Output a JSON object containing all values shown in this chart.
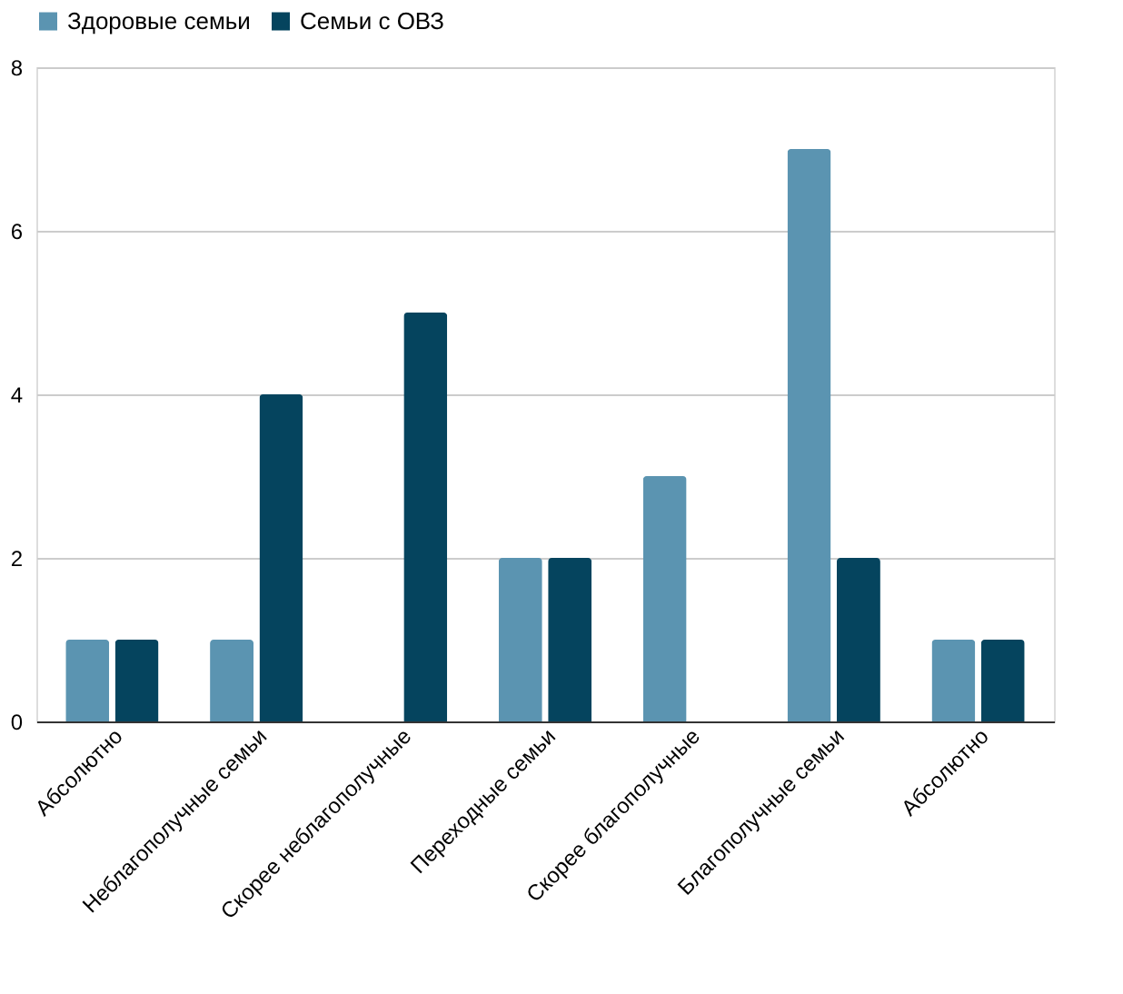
{
  "chart_data": {
    "type": "bar",
    "categories": [
      "Абсолютно",
      "Неблагополучные семьи",
      "Скорее неблагополучные",
      "Переходные семьи",
      "Скорее благополучные",
      "Благополучные семьи",
      "Абсолютно"
    ],
    "series": [
      {
        "name": "Здоровые семьи",
        "color": "#5b94b1",
        "values": [
          1,
          1,
          0,
          2,
          3,
          7,
          1
        ]
      },
      {
        "name": "Семьи с ОВЗ",
        "color": "#05445e",
        "values": [
          1,
          4,
          5,
          2,
          0,
          2,
          1
        ]
      }
    ],
    "ylim": [
      0,
      8
    ],
    "yticks": [
      0,
      2,
      4,
      6,
      8
    ],
    "grid": "y",
    "legend": "top"
  }
}
